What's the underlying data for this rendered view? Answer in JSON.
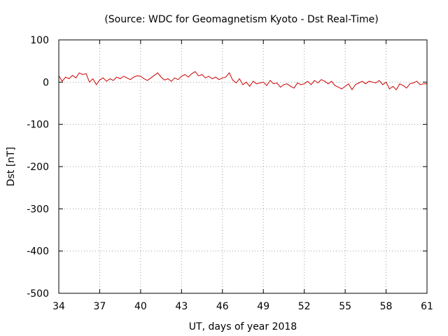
{
  "chart_data": {
    "type": "line",
    "title": "(Source: WDC for Geomagnetism Kyoto - Dst Real-Time)",
    "xlabel": "UT, days of year 2018",
    "ylabel": "Dst [nT]",
    "xlim": [
      34,
      61
    ],
    "ylim": [
      -500,
      100
    ],
    "xticks": [
      34,
      37,
      40,
      43,
      46,
      49,
      52,
      55,
      58,
      61
    ],
    "yticks": [
      100,
      0,
      -100,
      -200,
      -300,
      -400,
      -500
    ],
    "grid": true,
    "line_color": "#cc0000",
    "series": [
      {
        "x": [
          34.0,
          34.25,
          34.5,
          34.75,
          35.0,
          35.25,
          35.5,
          35.75,
          36.0,
          36.25,
          36.5,
          36.75,
          37.0,
          37.25,
          37.5,
          37.75,
          38.0,
          38.25,
          38.5,
          38.75,
          39.0,
          39.25,
          39.5,
          39.75,
          40.0,
          40.25,
          40.5,
          40.75,
          41.0,
          41.25,
          41.5,
          41.75,
          42.0,
          42.25,
          42.5,
          42.75,
          43.0,
          43.25,
          43.5,
          43.75,
          44.0,
          44.25,
          44.5,
          44.75,
          45.0,
          45.25,
          45.5,
          45.75,
          46.0,
          46.25,
          46.5,
          46.75,
          47.0,
          47.25,
          47.5,
          47.75,
          48.0,
          48.25,
          48.5,
          48.75,
          49.0,
          49.25,
          49.5,
          49.75,
          50.0,
          50.25,
          50.5,
          50.75,
          51.0,
          51.25,
          51.5,
          51.75,
          52.0,
          52.25,
          52.5,
          52.75,
          53.0,
          53.25,
          53.5,
          53.75,
          54.0,
          54.25,
          54.5,
          54.75,
          55.0,
          55.25,
          55.5,
          55.75,
          56.0,
          56.25,
          56.5,
          56.75,
          57.0,
          57.25,
          57.5,
          57.75,
          58.0,
          58.25,
          58.5,
          58.75,
          59.0,
          59.25,
          59.5,
          59.75,
          60.0,
          60.25,
          60.5,
          60.75,
          61.0
        ],
        "values": [
          15,
          2,
          12,
          8,
          16,
          10,
          22,
          18,
          20,
          0,
          8,
          -6,
          5,
          10,
          2,
          8,
          4,
          12,
          8,
          14,
          10,
          6,
          12,
          15,
          14,
          8,
          4,
          10,
          16,
          22,
          12,
          5,
          8,
          2,
          10,
          6,
          14,
          18,
          12,
          20,
          25,
          15,
          18,
          10,
          14,
          8,
          12,
          6,
          10,
          12,
          22,
          5,
          -2,
          8,
          -6,
          0,
          -10,
          2,
          -4,
          -2,
          0,
          -8,
          4,
          -4,
          -2,
          -12,
          -6,
          -4,
          -10,
          -14,
          -2,
          -6,
          -4,
          2,
          -6,
          4,
          -2,
          6,
          2,
          -4,
          2,
          -8,
          -12,
          -16,
          -10,
          -4,
          -18,
          -6,
          -2,
          2,
          -4,
          2,
          0,
          -2,
          4,
          -6,
          0,
          -16,
          -10,
          -18,
          -4,
          -8,
          -14,
          -4,
          -2,
          2,
          -6,
          -4,
          -4
        ]
      }
    ]
  }
}
